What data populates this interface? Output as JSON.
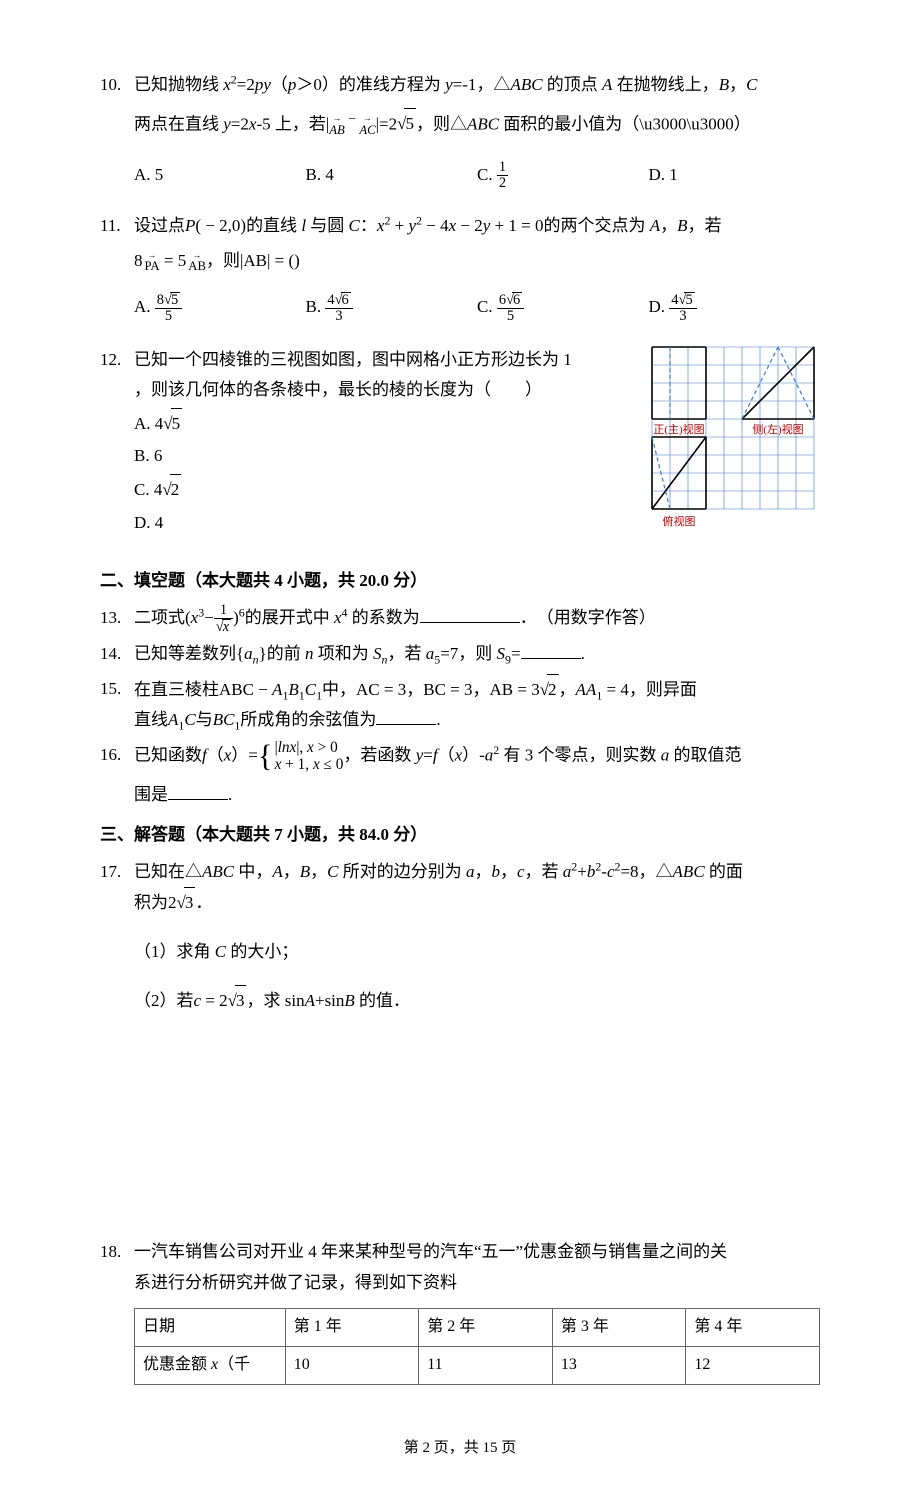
{
  "colors": {
    "text": "#000000",
    "bg": "#ffffff",
    "grid": "#3a7acb",
    "gridLight": "#3a7acb",
    "axis": "#000000",
    "dashed": "#3a7acb",
    "label_red": "#c00000",
    "table_border": "#666666"
  },
  "typography": {
    "base_fontsize_pt": 12,
    "footer_fontsize_pt": 11,
    "cn_font": "SimSun",
    "math_font": "Times New Roman"
  },
  "q10": {
    "num": "10.",
    "body_line1": "已知抛物线 x²=2py（p＞0）的准线方程为 y=-1，△ABC 的顶点 A 在抛物线上，B，C",
    "body_line2_prefix": "两点在直线 y=2x-5 上，若|",
    "vec1_sub": "AB",
    "mid_minus": "−",
    "vec2_sub": "AC",
    "body_line2_mid": "|=2",
    "sqrt_val": "5",
    "body_line2_suffix": "，则△ABC 面积的最小值为（　　）",
    "opts": {
      "A": "A. 5",
      "B": "B. 4",
      "C_prefix": "C. ",
      "C_num": "1",
      "C_den": "2",
      "D": "D. 1"
    }
  },
  "q11": {
    "num": "11.",
    "body_line1": "设过点P( − 2,0)的直线 l 与圆 C：x² + y² − 4x − 2y + 1 = 0的两个交点为 A，B，若",
    "line2_coef1": "8",
    "vec1_sub": "PA",
    "eq": " = 5",
    "vec2_sub": "AB",
    "line2_suffix": "，则|AB| = ()",
    "opts": {
      "A_prefix": "A. ",
      "A_num": "8",
      "A_sqrt": "5",
      "A_den": "5",
      "B_prefix": "B. ",
      "B_num": "4",
      "B_sqrt": "6",
      "B_den": "3",
      "C_prefix": "C. ",
      "C_num": "6",
      "C_sqrt": "6",
      "C_den": "5",
      "D_prefix": "D. ",
      "D_num": "4",
      "D_sqrt": "5",
      "D_den": "3"
    }
  },
  "q12": {
    "num": "12.",
    "body_line1": "已知一个四棱锥的三视图如图，图中网格小正方形边长为 1",
    "body_line2": "，则该几何体的各条棱中，最长的棱的长度为（　　）",
    "opts": {
      "A_prefix": "A. 4",
      "A_sqrt": "5",
      "B": "B. 6",
      "C_prefix": "C. 4",
      "C_sqrt": "2",
      "D": "D. 4"
    },
    "diagram": {
      "type": "three-view-grid",
      "grid_cols": 9,
      "grid_rows": 9,
      "cell": 18,
      "grid_color": "#3a7acb",
      "solid_color": "#000000",
      "dashed_color": "#3a7acb",
      "label_color": "#c00000",
      "label_front": "正(主)视图",
      "label_side": "侧(左)视图",
      "label_top": "俯视图",
      "front": {
        "outer": [
          [
            0,
            0
          ],
          [
            3,
            0
          ],
          [
            3,
            4
          ],
          [
            0,
            4
          ]
        ],
        "dashed": [
          [
            [
              1,
              0
            ],
            [
              1,
              4
            ]
          ]
        ]
      },
      "side": {
        "outer": [
          [
            0,
            4
          ],
          [
            4,
            4
          ],
          [
            4,
            0
          ]
        ],
        "close": [
          [
            4,
            0
          ],
          [
            0,
            4
          ]
        ],
        "dashed": [
          [
            [
              0,
              4
            ],
            [
              2,
              0
            ]
          ],
          [
            [
              2,
              0
            ],
            [
              4,
              4
            ]
          ]
        ]
      },
      "top": {
        "outer": [
          [
            0,
            0
          ],
          [
            3,
            0
          ],
          [
            3,
            4
          ],
          [
            0,
            4
          ]
        ],
        "diag": [
          [
            [
              0,
              0
            ],
            [
              3,
              4
            ]
          ]
        ],
        "dashed": [
          [
            [
              0,
              4
            ],
            [
              1,
              0
            ]
          ]
        ]
      }
    }
  },
  "section2": "二、填空题（本大题共 4 小题，共 20.0 分）",
  "q13": {
    "num": "13.",
    "prefix": "二项式(",
    "term1": "x³−",
    "frac_num": "1",
    "frac_den_sqrt": "x",
    "exp": ")⁶",
    "mid": "的展开式中 x⁴ 的系数为",
    "suffix": "．　（用数字作答）"
  },
  "q14": {
    "num": "14.",
    "body": "已知等差数列{aₙ}的前 n 项和为 Sₙ，若 a₅=7，则 S₉=",
    "suffix": "."
  },
  "q15": {
    "num": "15.",
    "line1_prefix": "在直三棱柱ABC − A₁B₁C₁中，AC = 3，BC = 3，AB = 3",
    "sqrt_val": "2",
    "line1_suffix": "，AA₁ = 4，则异面",
    "line2_prefix": "直线A₁C与BC₁所成角的余弦值为",
    "suffix": "."
  },
  "q16": {
    "num": "16.",
    "prefix": "已知函数f（x）=",
    "case1": "|lnx|, x > 0",
    "case2": "x + 1, x ≤ 0",
    "mid": "，若函数 y=f（x）-a² 有 3 个零点，则实数 a 的取值范",
    "line2_prefix": "围是",
    "suffix": "."
  },
  "section3": "三、解答题（本大题共 7 小题，共 84.0 分）",
  "q17": {
    "num": "17.",
    "line1": "已知在△ABC 中，A，B，C 所对的边分别为 a，b，c，若 a²+b²-c²=8，△ABC 的面",
    "line2_prefix": "积为2",
    "line2_sqrt": "3",
    "line2_suffix": "．",
    "part1": "（1）求角 C 的大小；",
    "part2_prefix": "（2）若c = 2",
    "part2_sqrt": "3",
    "part2_suffix": "，求 sinA+sinB 的值．"
  },
  "q18": {
    "num": "18.",
    "line1": "一汽车销售公司对开业 4 年来某种型号的汽车“五一”优惠金额与销售量之间的关",
    "line2": "系进行分析研究并做了记录，得到如下资料",
    "table": {
      "columns": [
        "日期",
        "第 1 年",
        "第 2 年",
        "第 3 年",
        "第 4 年"
      ],
      "row2_label": "优惠金额 x（千",
      "row2_vals": [
        "10",
        "11",
        "13",
        "12"
      ],
      "col_widths_pct": [
        22,
        19.5,
        19.5,
        19.5,
        19.5
      ]
    }
  },
  "footer": "第 2 页，共 15 页"
}
